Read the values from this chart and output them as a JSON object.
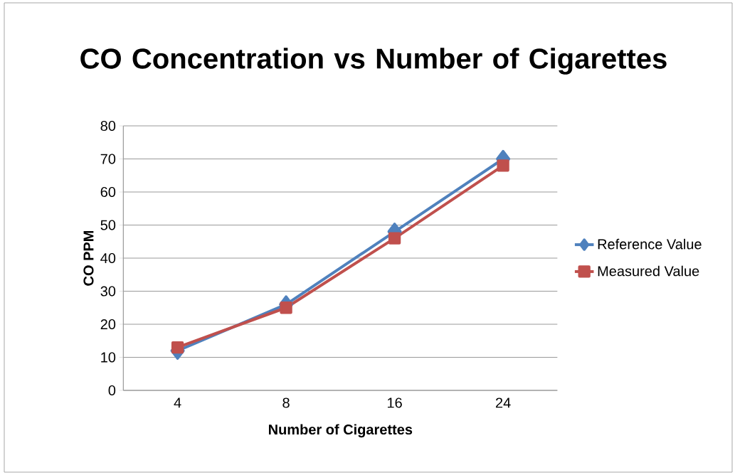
{
  "chart_data": {
    "type": "line",
    "title": "CO Concentration vs Number of Cigarettes",
    "xlabel": "Number of Cigarettes",
    "ylabel": "CO PPM",
    "categories": [
      "4",
      "8",
      "16",
      "24"
    ],
    "series": [
      {
        "name": "Reference Value",
        "color": "#4f81bd",
        "values": [
          12,
          26,
          48,
          70
        ],
        "marker": "diamond"
      },
      {
        "name": "Measured Value",
        "color": "#c0504d",
        "values": [
          13,
          25,
          46,
          68
        ],
        "marker": "square"
      }
    ],
    "ylim": [
      0,
      80
    ],
    "yticks": [
      0,
      10,
      20,
      30,
      40,
      50,
      60,
      70,
      80
    ],
    "grid": "y",
    "legend": "right"
  }
}
